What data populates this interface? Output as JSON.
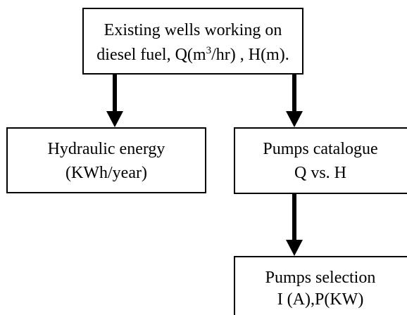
{
  "nodes": [
    {
      "lines": [
        "Existing wells working on"
      ],
      "line2": [
        "diesel fuel, Q(m",
        "3",
        "/hr) , H(m)."
      ]
    },
    {
      "lines": [
        "Hydraulic energy",
        "(KWh/year)"
      ]
    },
    {
      "lines": [
        "Pumps catalogue",
        "Q vs. H"
      ]
    },
    {
      "lines": [
        "Pumps selection",
        "I (A),P(KW)"
      ]
    }
  ]
}
